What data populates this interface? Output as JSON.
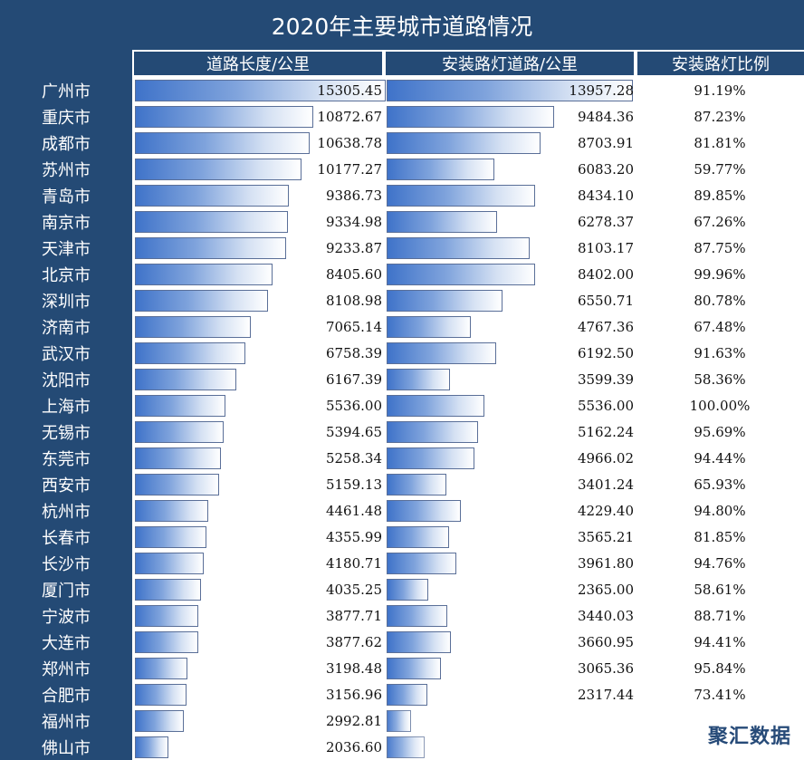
{
  "title": "2020年主要城市道路情况",
  "headers": {
    "length": "道路长度/公里",
    "lit": "安装路灯道路/公里",
    "ratio": "安装路灯比例"
  },
  "watermark": "聚汇数据",
  "chart_data": {
    "type": "bar",
    "title": "2020年主要城市道路情况",
    "categories": [
      "广州市",
      "重庆市",
      "成都市",
      "苏州市",
      "青岛市",
      "南京市",
      "天津市",
      "北京市",
      "深圳市",
      "济南市",
      "武汉市",
      "沈阳市",
      "上海市",
      "无锡市",
      "东莞市",
      "西安市",
      "杭州市",
      "长春市",
      "长沙市",
      "厦门市",
      "宁波市",
      "大连市",
      "郑州市",
      "合肥市",
      "福州市",
      "佛山市"
    ],
    "series": [
      {
        "name": "道路长度/公里",
        "values": [
          15305.45,
          10872.67,
          10638.78,
          10177.27,
          9386.73,
          9334.98,
          9233.87,
          8405.6,
          8108.98,
          7065.14,
          6758.39,
          6167.39,
          5536.0,
          5394.65,
          5258.34,
          5159.13,
          4461.48,
          4355.99,
          4180.71,
          4035.25,
          3877.71,
          3877.62,
          3198.48,
          3156.96,
          2992.81,
          2036.6
        ]
      },
      {
        "name": "安装路灯道路/公里",
        "values": [
          13957.28,
          9484.36,
          8703.91,
          6083.2,
          8434.1,
          6278.37,
          8103.17,
          8402.0,
          6550.71,
          4767.36,
          6192.5,
          3599.39,
          5536.0,
          5162.24,
          4966.02,
          3401.24,
          4229.4,
          3565.21,
          3961.8,
          2365.0,
          3440.03,
          3660.95,
          3065.36,
          2317.44,
          null,
          null
        ]
      },
      {
        "name": "安装路灯比例",
        "values": [
          "91.19%",
          "87.23%",
          "81.81%",
          "59.77%",
          "89.85%",
          "67.26%",
          "87.75%",
          "99.96%",
          "80.78%",
          "67.48%",
          "91.63%",
          "58.36%",
          "100.00%",
          "95.69%",
          "94.44%",
          "65.93%",
          "94.80%",
          "81.85%",
          "94.76%",
          "58.61%",
          "88.71%",
          "94.41%",
          "95.84%",
          "73.41%",
          "",
          ""
        ]
      }
    ],
    "lit_bar_values_visible": [
      null,
      null,
      null,
      null,
      null,
      null,
      null,
      null,
      null,
      null,
      null,
      null,
      null,
      null,
      null,
      null,
      null,
      null,
      null,
      null,
      null,
      null,
      null,
      null,
      1400,
      2150
    ]
  }
}
